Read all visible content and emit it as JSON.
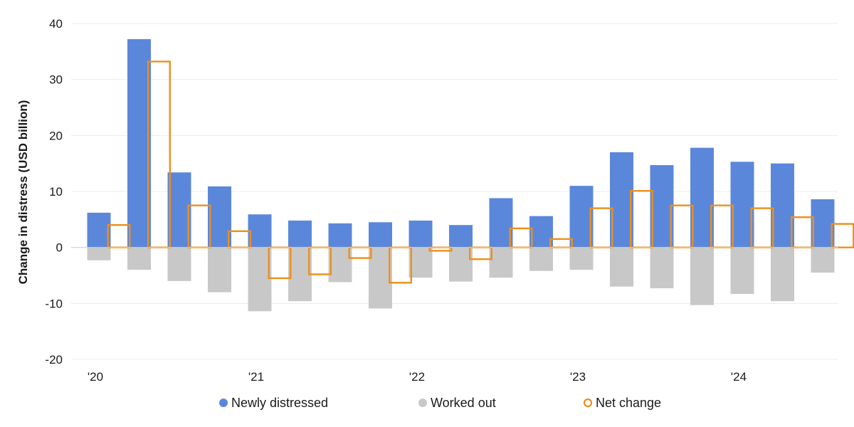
{
  "chart_data": {
    "type": "bar",
    "title": "",
    "ylabel": "Change in distress (USD billion)",
    "xlabel": "",
    "ylim": [
      -20,
      40
    ],
    "yticks": [
      40,
      30,
      20,
      10,
      0,
      -10,
      -20
    ],
    "grid": true,
    "legend_position": "bottom-center",
    "x_tick_labels": [
      {
        "label": "'20",
        "index": 0
      },
      {
        "label": "'21",
        "index": 4
      },
      {
        "label": "'22",
        "index": 8
      },
      {
        "label": "'23",
        "index": 12
      },
      {
        "label": "'24",
        "index": 16
      }
    ],
    "periods": 19,
    "series": [
      {
        "name": "Newly distressed",
        "style": "bar",
        "color": "#5b87db",
        "values": [
          6.2,
          37.2,
          13.4,
          10.9,
          5.9,
          4.8,
          4.3,
          4.5,
          4.8,
          4.0,
          8.8,
          5.6,
          11.0,
          17.0,
          14.7,
          17.8,
          15.3,
          15.0,
          8.6
        ]
      },
      {
        "name": "Worked out",
        "style": "bar",
        "color": "#c8c8c8",
        "values": [
          -2.3,
          -4.0,
          -6.0,
          -8.0,
          -11.4,
          -9.6,
          -6.2,
          -10.9,
          -5.4,
          -6.1,
          -5.4,
          -4.2,
          -4.0,
          -7.0,
          -7.3,
          -10.3,
          -8.3,
          -9.6,
          -4.5
        ]
      },
      {
        "name": "Net change",
        "style": "outline-bar",
        "color": "#ec8f1c",
        "values": [
          4.0,
          33.2,
          7.5,
          2.9,
          -5.5,
          -4.8,
          -1.9,
          -6.3,
          -0.6,
          -2.1,
          3.4,
          1.5,
          7.0,
          10.1,
          7.5,
          7.5,
          7.0,
          5.4,
          4.2
        ]
      }
    ]
  }
}
